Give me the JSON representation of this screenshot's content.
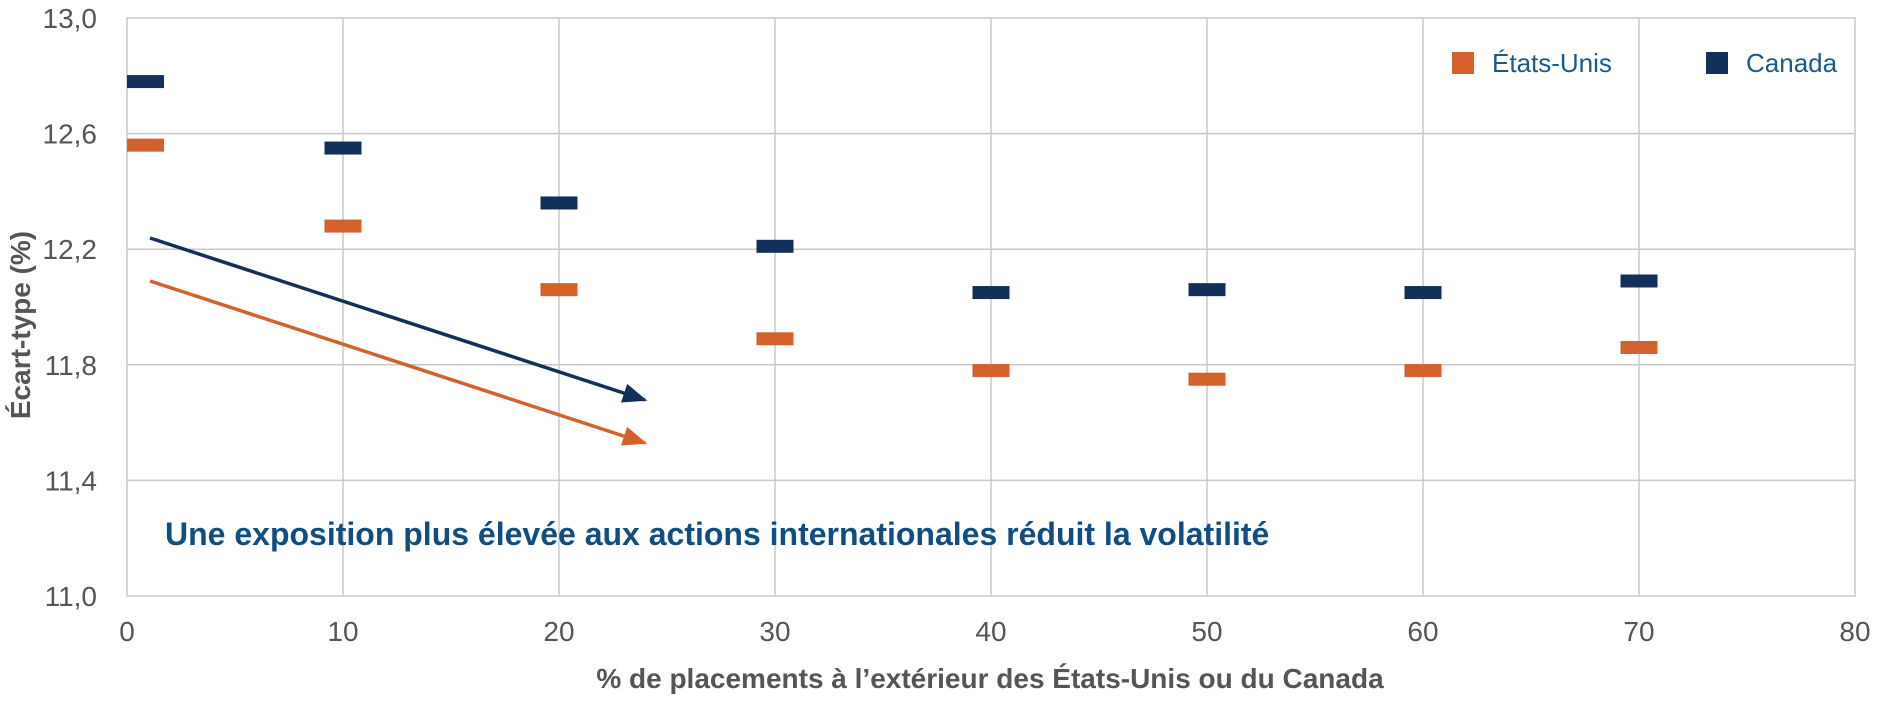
{
  "chart_data": {
    "type": "scatter",
    "title": "",
    "xlabel": "% de placements à l’extérieur des États-Unis ou du Canada",
    "ylabel": "Écart-type (%)",
    "xlim": [
      0,
      80
    ],
    "ylim": [
      11.0,
      13.0
    ],
    "x_ticks": [
      "0",
      "10",
      "20",
      "30",
      "40",
      "50",
      "60",
      "70",
      "80"
    ],
    "y_ticks": [
      "11,0",
      "11,4",
      "11,8",
      "12,2",
      "12,6",
      "13,0"
    ],
    "x": [
      0,
      10,
      20,
      30,
      40,
      50,
      60,
      70
    ],
    "grid": true,
    "legend_position": "top-right",
    "series": [
      {
        "name": "États-Unis",
        "color": "#d4602c",
        "values": [
          12.56,
          12.28,
          12.06,
          11.89,
          11.78,
          11.75,
          11.78,
          11.86
        ]
      },
      {
        "name": "Canada",
        "color": "#13305a",
        "values": [
          12.78,
          12.55,
          12.36,
          12.21,
          12.05,
          12.06,
          12.05,
          12.09
        ]
      }
    ],
    "annotation": "Une exposition plus élevée aux actions internationales réduit la volatilité"
  }
}
